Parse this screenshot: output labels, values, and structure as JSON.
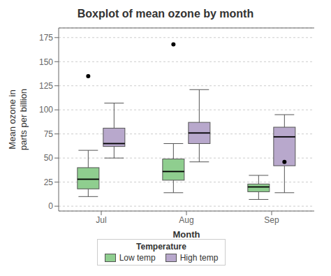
{
  "chart_data": {
    "type": "box",
    "title": "Boxplot of mean ozone by month",
    "xlabel": "Month",
    "ylabel": "Mean ozone in\nparts per billion",
    "categories": [
      "Jul",
      "Aug",
      "Sep"
    ],
    "series": [
      {
        "name": "Low temp",
        "color": "#8fce8f",
        "whislo": [
          10,
          14,
          7
        ],
        "q1": [
          18,
          27,
          15
        ],
        "med": [
          28,
          36,
          20
        ],
        "q3": [
          40,
          49,
          23
        ],
        "whishi": [
          58,
          65,
          32
        ],
        "fliers": [
          [
            135
          ],
          [
            168
          ],
          []
        ]
      },
      {
        "name": "High temp",
        "color": "#b8a8cc",
        "whislo": [
          50,
          46,
          14
        ],
        "q1": [
          62,
          65,
          42
        ],
        "med": [
          65,
          76,
          72
        ],
        "q3": [
          81,
          87,
          82
        ],
        "whishi": [
          107,
          121,
          95
        ],
        "fliers": [
          [],
          [],
          [
            46
          ]
        ]
      }
    ],
    "ylim": [
      -5,
      185
    ],
    "yticks": [
      0,
      25,
      50,
      75,
      100,
      125,
      150,
      175
    ],
    "grid": true,
    "legend": "bottom",
    "legend_title": "Temperature"
  }
}
